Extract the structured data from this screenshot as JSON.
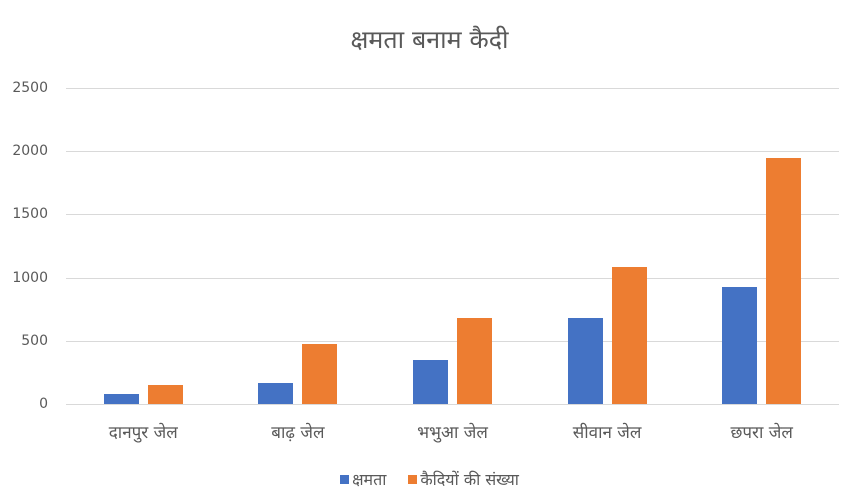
{
  "chart_data": {
    "type": "bar",
    "title": "क्षमता बनाम कैदी",
    "xlabel": "",
    "ylabel": "",
    "ylim": [
      0,
      2500
    ],
    "yticks": [
      "0",
      "500",
      "1000",
      "1500",
      "2000",
      "2500"
    ],
    "grid": true,
    "legend_position": "bottom",
    "categories": [
      "दानपुर जेल",
      "बाढ़ जेल",
      "भभुआ जेल",
      "सीवान जेल",
      "छपरा जेल"
    ],
    "series": [
      {
        "name": "क्षमता",
        "color": "#4472C4",
        "values": [
          80,
          165,
          350,
          680,
          925
        ]
      },
      {
        "name": "कैदियों की संख्या",
        "color": "#ED7D31",
        "values": [
          150,
          475,
          680,
          1085,
          1945
        ]
      }
    ]
  }
}
